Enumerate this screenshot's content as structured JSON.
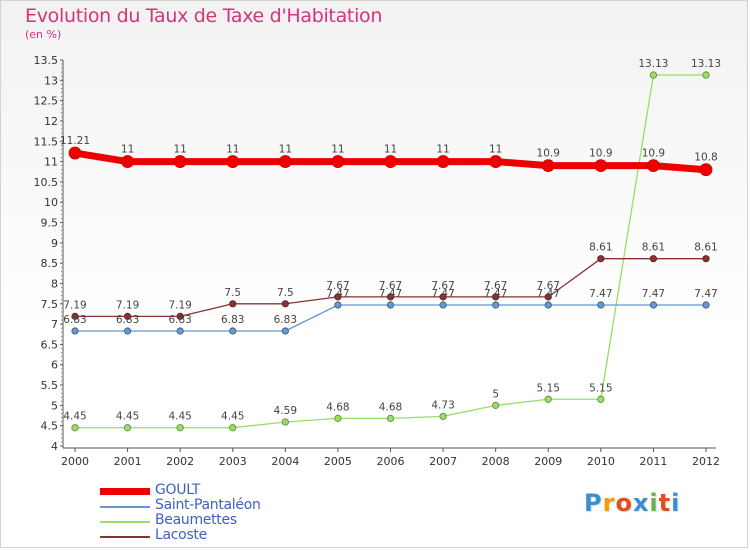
{
  "title": "Evolution du Taux de Taxe d'Habitation",
  "unit": "(en %)",
  "logo": {
    "text": "Proxiti",
    "colors": [
      "#3b8fd0",
      "#f0a000",
      "#e84c1e",
      "#3b8fd0",
      "#6ab04c",
      "#e84c1e",
      "#3b8fd0"
    ]
  },
  "chart_data": {
    "type": "line",
    "x": [
      2000,
      2001,
      2002,
      2003,
      2004,
      2005,
      2006,
      2007,
      2008,
      2009,
      2010,
      2011,
      2012
    ],
    "ylim": [
      4,
      13.5
    ],
    "yticks": [
      4,
      4.5,
      5,
      5.5,
      6,
      6.5,
      7,
      7.5,
      8,
      8.5,
      9,
      9.5,
      10,
      10.5,
      11,
      11.5,
      12,
      12.5,
      13,
      13.5
    ],
    "grid": false,
    "legend_position": "bottom-left",
    "series": [
      {
        "name": "GOULT",
        "color": "#ee0000",
        "values": [
          11.21,
          11,
          11,
          11,
          11,
          11,
          11,
          11,
          11,
          10.9,
          10.9,
          10.9,
          10.8
        ],
        "labels": [
          "11.21",
          "11",
          "11",
          "11",
          "11",
          "11",
          "11",
          "11",
          "11",
          "10.9",
          "10.9",
          "10.9",
          "10.8"
        ]
      },
      {
        "name": "Saint-Pantaléon",
        "color": "#6699cc",
        "values": [
          6.83,
          6.83,
          6.83,
          6.83,
          6.83,
          7.47,
          7.47,
          7.47,
          7.47,
          7.47,
          7.47,
          7.47,
          7.47
        ],
        "labels": [
          "6.83",
          "6.83",
          "6.83",
          "6.83",
          "6.83",
          "7.47",
          "7.47",
          "7.47",
          "7.47",
          "7.47",
          "7.47",
          "7.47",
          "7.47"
        ]
      },
      {
        "name": "Beaumettes",
        "color": "#99dd66",
        "values": [
          4.45,
          4.45,
          4.45,
          4.45,
          4.59,
          4.68,
          4.68,
          4.73,
          5,
          5.15,
          5.15,
          13.13,
          13.13
        ],
        "labels": [
          "4.45",
          "4.45",
          "4.45",
          "4.45",
          "4.59",
          "4.68",
          "4.68",
          "4.73",
          "5",
          "5.15",
          "5.15",
          "13.13",
          "13.13"
        ]
      },
      {
        "name": "Lacoste",
        "color": "#883333",
        "values": [
          7.19,
          7.19,
          7.19,
          7.5,
          7.5,
          7.67,
          7.67,
          7.67,
          7.67,
          7.67,
          8.61,
          8.61,
          8.61
        ],
        "labels": [
          "7.19",
          "7.19",
          "7.19",
          "7.5",
          "7.5",
          "7.67",
          "7.67",
          "7.67",
          "7.67",
          "7.67",
          "8.61",
          "8.61",
          "8.61"
        ]
      }
    ]
  }
}
